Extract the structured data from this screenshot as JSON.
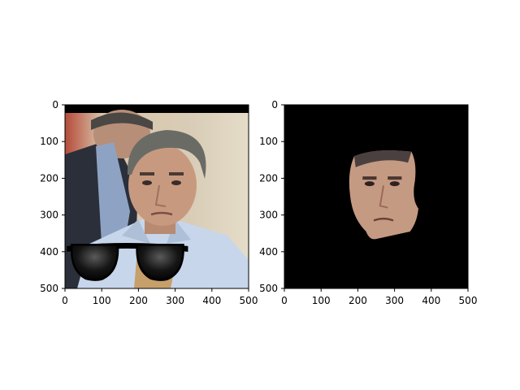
{
  "chart_data": [
    {
      "type": "image",
      "title": "",
      "xlabel": "",
      "ylabel": "",
      "xlim": [
        0,
        500
      ],
      "ylim": [
        500,
        0
      ],
      "xticks": [
        0,
        100,
        200,
        300,
        400,
        500
      ],
      "yticks": [
        0,
        100,
        200,
        300,
        400,
        500
      ],
      "content": "photo of a man in a light blue shirt with a pair of black sunglasses overlaid near the bottom; black strip along the top edge",
      "overlay": {
        "name": "sunglasses",
        "color": "#000000",
        "center": [
          170,
          420
        ],
        "width_units": 330,
        "height_units": 110
      },
      "colors": {
        "background_left": "#c9b49a",
        "shirt": "#c7d6ea",
        "face": "#c79a80",
        "hair": "#6b6b66",
        "dark_suit": "#2b2f3a"
      }
    },
    {
      "type": "image",
      "title": "",
      "xlabel": "",
      "ylabel": "",
      "xlim": [
        0,
        500
      ],
      "ylim": [
        500,
        0
      ],
      "xticks": [
        0,
        100,
        200,
        300,
        400,
        500
      ],
      "yticks": [
        0,
        100,
        200,
        300,
        400,
        500
      ],
      "content": "segmented face of the same man on a black background",
      "background_color": "#000000",
      "face_region": {
        "x_range": [
          175,
          365
        ],
        "y_range": [
          120,
          370
        ]
      },
      "colors": {
        "face": "#c59a82",
        "hair": "#4a4040"
      }
    }
  ]
}
